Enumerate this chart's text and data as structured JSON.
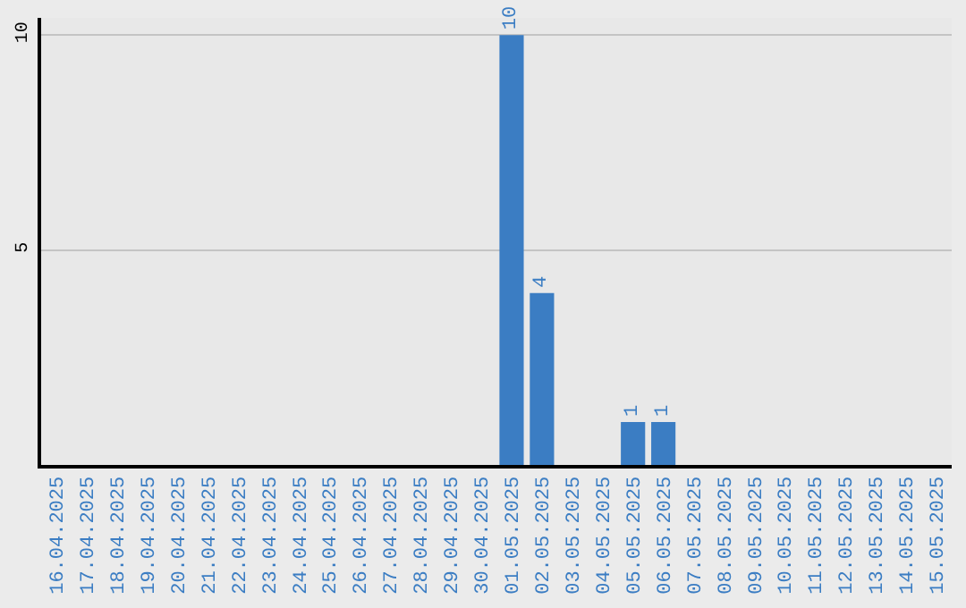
{
  "chart_data": {
    "type": "bar",
    "categories": [
      "16.04.2025",
      "17.04.2025",
      "18.04.2025",
      "19.04.2025",
      "20.04.2025",
      "21.04.2025",
      "22.04.2025",
      "23.04.2025",
      "24.04.2025",
      "25.04.2025",
      "26.04.2025",
      "27.04.2025",
      "28.04.2025",
      "29.04.2025",
      "30.04.2025",
      "01.05.2025",
      "02.05.2025",
      "03.05.2025",
      "04.05.2025",
      "05.05.2025",
      "06.05.2025",
      "07.05.2025",
      "08.05.2025",
      "09.05.2025",
      "10.05.2025",
      "11.05.2025",
      "12.05.2025",
      "13.05.2025",
      "14.05.2025",
      "15.05.2025"
    ],
    "values": [
      0,
      0,
      0,
      0,
      0,
      0,
      0,
      0,
      0,
      0,
      0,
      0,
      0,
      0,
      0,
      10,
      4,
      0,
      0,
      1,
      1,
      0,
      0,
      0,
      0,
      0,
      0,
      0,
      0,
      0
    ],
    "value_labels": [
      null,
      null,
      null,
      null,
      null,
      null,
      null,
      null,
      null,
      null,
      null,
      null,
      null,
      null,
      null,
      "10",
      "4",
      null,
      null,
      "1",
      "1",
      null,
      null,
      null,
      null,
      null,
      null,
      null,
      null,
      null
    ],
    "color": "#3b7dc3",
    "ylim": [
      0,
      10.4
    ],
    "yticks": [
      5,
      10
    ],
    "grid": "y",
    "legend": false
  }
}
